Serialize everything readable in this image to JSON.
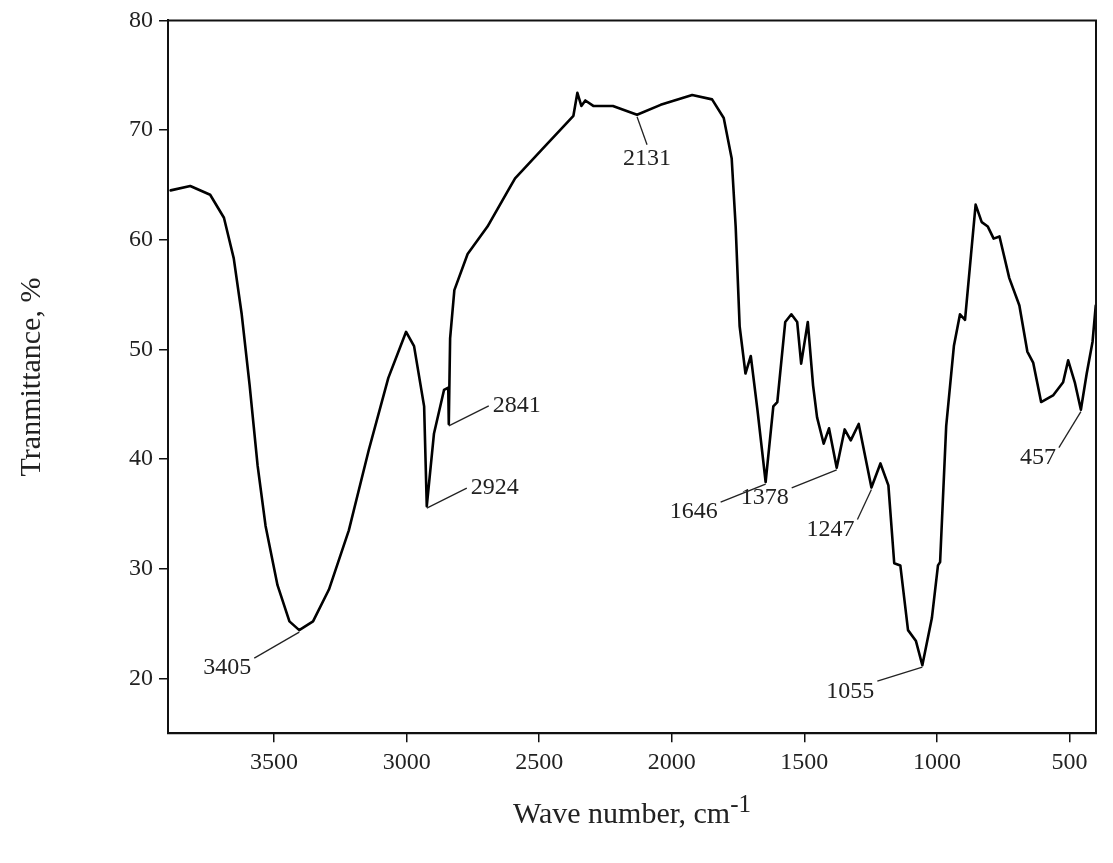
{
  "chart_data": {
    "type": "line",
    "xlabel": "Wave number, cm$^{-1}$",
    "ylabel": "Tranmittance, %",
    "xlim": [
      3900,
      400
    ],
    "xticks": [
      3500,
      3000,
      2500,
      2000,
      1500,
      1000,
      500
    ],
    "ylim": [
      15,
      80
    ],
    "yticks": [
      20,
      30,
      40,
      50,
      60,
      70,
      80
    ],
    "grid": false,
    "legend": false,
    "marker": "none",
    "line_style": "solid",
    "series": [
      {
        "color": "#000000",
        "x": [
          3890,
          3816,
          3741,
          3689,
          3652,
          3622,
          3592,
          3562,
          3532,
          3487,
          3442,
          3405,
          3353,
          3293,
          3218,
          3143,
          3069,
          3002,
          2972,
          2934,
          2924,
          2897,
          2859,
          2843,
          2841,
          2836,
          2820,
          2770,
          2695,
          2591,
          2491,
          2371,
          2356,
          2341,
          2326,
          2296,
          2222,
          2131,
          2042,
          1923,
          1848,
          1804,
          1774,
          1759,
          1744,
          1722,
          1702,
          1677,
          1646,
          1617,
          1602,
          1572,
          1549,
          1527,
          1512,
          1487,
          1467,
          1452,
          1427,
          1407,
          1378,
          1348,
          1325,
          1295,
          1247,
          1213,
          1183,
          1161,
          1138,
          1109,
          1079,
          1055,
          1019,
          996,
          988,
          965,
          936,
          913,
          894,
          854,
          831,
          808,
          786,
          764,
          727,
          689,
          659,
          637,
          607,
          562,
          524,
          505,
          480,
          457,
          435,
          413,
          401
        ],
        "values": [
          64.5,
          64.9,
          64.1,
          62.0,
          58.3,
          53.2,
          46.7,
          39.4,
          33.9,
          28.5,
          25.2,
          24.4,
          25.2,
          28.1,
          33.5,
          40.8,
          47.4,
          51.6,
          50.3,
          44.8,
          35.7,
          42.3,
          46.3,
          46.5,
          43.2,
          51.0,
          55.4,
          58.7,
          61.2,
          65.6,
          68.2,
          71.3,
          73.4,
          72.2,
          72.7,
          72.2,
          72.2,
          71.4,
          72.3,
          73.2,
          72.8,
          71.1,
          67.4,
          61.2,
          52.1,
          47.8,
          49.4,
          44.5,
          37.9,
          44.8,
          45.2,
          52.5,
          53.2,
          52.5,
          48.7,
          52.5,
          46.7,
          43.8,
          41.4,
          42.8,
          39.2,
          42.7,
          41.7,
          43.2,
          37.4,
          39.6,
          37.6,
          30.5,
          30.3,
          24.4,
          23.4,
          21.2,
          25.5,
          30.3,
          30.6,
          43.0,
          50.3,
          53.2,
          52.7,
          63.2,
          61.6,
          61.2,
          60.1,
          60.3,
          56.5,
          54.0,
          49.8,
          48.8,
          45.2,
          45.8,
          47.0,
          49.0,
          47.0,
          44.5,
          47.8,
          50.7,
          54.0
        ]
      }
    ],
    "annotations": [
      {
        "text": "3405",
        "x": 3405,
        "y": 24.4
      },
      {
        "text": "2924",
        "x": 2924,
        "y": 35.7
      },
      {
        "text": "2841",
        "x": 2841,
        "y": 43.2
      },
      {
        "text": "2131",
        "x": 2131,
        "y": 71.4
      },
      {
        "text": "1646",
        "x": 1646,
        "y": 37.9
      },
      {
        "text": "1378",
        "x": 1378,
        "y": 39.2
      },
      {
        "text": "1247",
        "x": 1247,
        "y": 37.4
      },
      {
        "text": "1055",
        "x": 1055,
        "y": 21.2
      },
      {
        "text": "457",
        "x": 457,
        "y": 44.5
      }
    ]
  }
}
